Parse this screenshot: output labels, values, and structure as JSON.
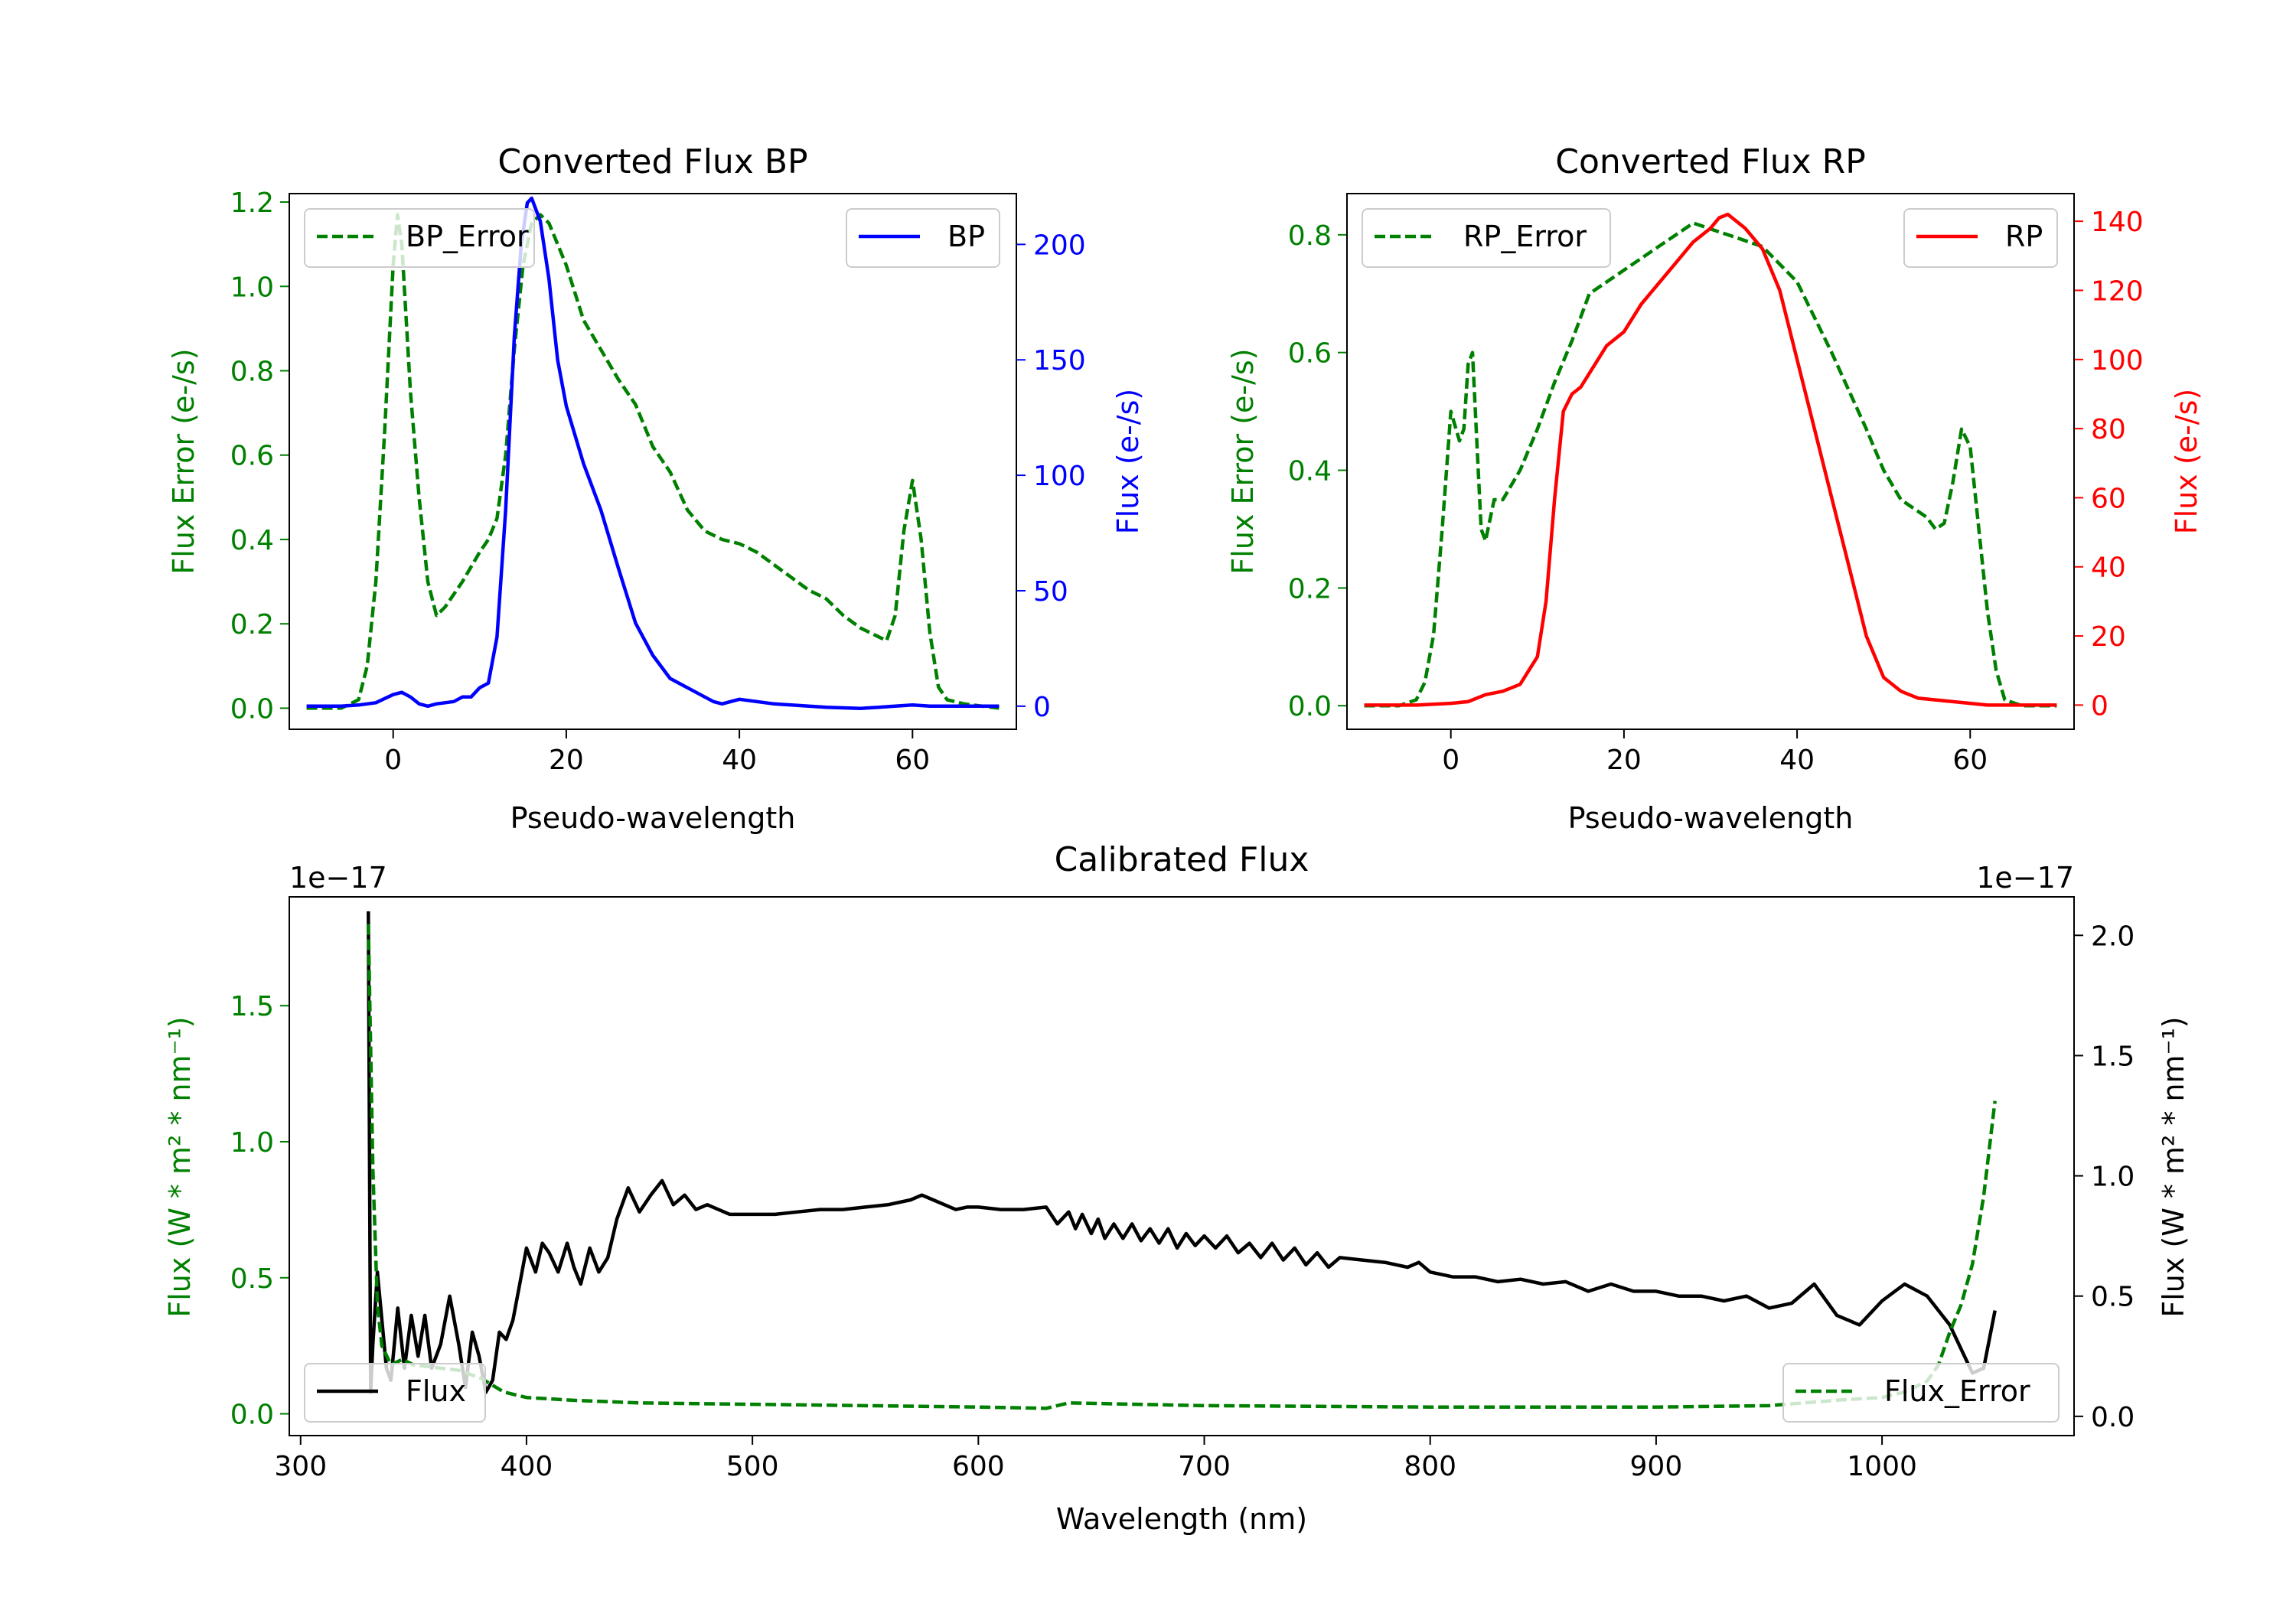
{
  "chart_data": [
    {
      "id": "bp",
      "type": "line",
      "title": "Converted Flux BP",
      "xlabel": "Pseudo-wavelength",
      "xlim": [
        -12,
        72
      ],
      "xticks": [
        0,
        20,
        40,
        60
      ],
      "ylabel_left": "Flux Error (e-/s)",
      "ylim_left": [
        -0.05,
        1.22
      ],
      "yticks_left": [
        0.0,
        0.2,
        0.4,
        0.6,
        0.8,
        1.0,
        1.2
      ],
      "ylabel_right": "Flux (e-/s)",
      "ylim_right": [
        -10,
        222
      ],
      "yticks_right": [
        0,
        50,
        100,
        150,
        200
      ],
      "left_color": "#008000",
      "right_color": "#0000ff",
      "legend_left": "BP_Error",
      "legend_right": "BP",
      "series": [
        {
          "name": "BP_Error",
          "axis": "left",
          "style": "dashed",
          "color": "#008000",
          "x": [
            -10,
            -6,
            -4,
            -3,
            -2,
            -1,
            0,
            0.5,
            1,
            2,
            3,
            4,
            5,
            6,
            8,
            10,
            11,
            12,
            13,
            14,
            15,
            16,
            17,
            18,
            20,
            22,
            24,
            26,
            28,
            30,
            32,
            34,
            36,
            38,
            40,
            42,
            44,
            46,
            48,
            50,
            52,
            54,
            56,
            57,
            58,
            59,
            60,
            61,
            62,
            63,
            64,
            66,
            70
          ],
          "values": [
            0.0,
            0.0,
            0.02,
            0.1,
            0.3,
            0.65,
            1.05,
            1.17,
            1.1,
            0.75,
            0.5,
            0.3,
            0.22,
            0.24,
            0.3,
            0.37,
            0.4,
            0.45,
            0.6,
            0.85,
            1.05,
            1.15,
            1.17,
            1.15,
            1.05,
            0.92,
            0.85,
            0.78,
            0.72,
            0.62,
            0.56,
            0.47,
            0.42,
            0.4,
            0.39,
            0.37,
            0.34,
            0.31,
            0.28,
            0.26,
            0.22,
            0.19,
            0.17,
            0.16,
            0.22,
            0.42,
            0.54,
            0.4,
            0.18,
            0.05,
            0.02,
            0.01,
            0.0
          ]
        },
        {
          "name": "BP",
          "axis": "right",
          "style": "solid",
          "color": "#0000ff",
          "x": [
            -10,
            -6,
            -4,
            -2,
            0,
            1,
            2,
            3,
            4,
            5,
            6,
            7,
            8,
            9,
            10,
            11,
            12,
            13,
            14,
            14.8,
            15.5,
            16,
            17,
            18,
            19,
            20,
            22,
            24,
            26,
            28,
            30,
            32,
            34,
            36,
            37,
            38,
            40,
            42,
            44,
            46,
            50,
            54,
            58,
            60,
            62,
            66,
            70
          ],
          "values": [
            0,
            0,
            0.5,
            1.5,
            5,
            6,
            4,
            1,
            0,
            1,
            1.5,
            2,
            4,
            4,
            8,
            10,
            30,
            85,
            160,
            200,
            218,
            220,
            210,
            185,
            150,
            130,
            105,
            85,
            60,
            36,
            22,
            12,
            8,
            4,
            2,
            1,
            3,
            2,
            1,
            0.5,
            -0.5,
            -1,
            0,
            0.5,
            0,
            0,
            0
          ]
        }
      ]
    },
    {
      "id": "rp",
      "type": "line",
      "title": "Converted Flux RP",
      "xlabel": "Pseudo-wavelength",
      "xlim": [
        -12,
        72
      ],
      "xticks": [
        0,
        20,
        40,
        60
      ],
      "ylabel_left": "Flux Error (e-/s)",
      "ylim_left": [
        -0.04,
        0.87
      ],
      "yticks_left": [
        0.0,
        0.2,
        0.4,
        0.6,
        0.8
      ],
      "ylabel_right": "Flux (e-/s)",
      "ylim_right": [
        -7,
        148
      ],
      "yticks_right": [
        0,
        20,
        40,
        60,
        80,
        100,
        120,
        140
      ],
      "left_color": "#008000",
      "right_color": "#ff0000",
      "legend_left": "RP_Error",
      "legend_right": "RP",
      "series": [
        {
          "name": "RP_Error",
          "axis": "left",
          "style": "dashed",
          "color": "#008000",
          "x": [
            -10,
            -6,
            -4,
            -3,
            -2,
            -1,
            0,
            1,
            1.5,
            2,
            2.5,
            3,
            3.5,
            4,
            5,
            6,
            8,
            10,
            12,
            14,
            16,
            20,
            24,
            28,
            32,
            36,
            40,
            44,
            48,
            50,
            52,
            54,
            55,
            56,
            57,
            58,
            59,
            60,
            61,
            62,
            63,
            64,
            66,
            70
          ],
          "values": [
            0.0,
            0.0,
            0.01,
            0.04,
            0.12,
            0.3,
            0.5,
            0.45,
            0.47,
            0.58,
            0.6,
            0.45,
            0.3,
            0.28,
            0.35,
            0.35,
            0.4,
            0.47,
            0.55,
            0.62,
            0.7,
            0.74,
            0.78,
            0.82,
            0.8,
            0.78,
            0.72,
            0.6,
            0.47,
            0.4,
            0.35,
            0.33,
            0.32,
            0.3,
            0.31,
            0.38,
            0.47,
            0.44,
            0.3,
            0.16,
            0.06,
            0.01,
            0.0,
            0.0
          ]
        },
        {
          "name": "RP",
          "axis": "right",
          "style": "solid",
          "color": "#ff0000",
          "x": [
            -10,
            -4,
            0,
            2,
            4,
            6,
            8,
            10,
            11,
            12,
            13,
            14,
            15,
            16,
            18,
            20,
            22,
            24,
            26,
            28,
            30,
            31,
            32,
            33,
            34,
            36,
            38,
            40,
            42,
            44,
            46,
            48,
            50,
            52,
            54,
            56,
            58,
            60,
            62,
            64,
            66,
            70
          ],
          "values": [
            0,
            0,
            0.5,
            1,
            3,
            4,
            6,
            14,
            30,
            60,
            85,
            90,
            92,
            96,
            104,
            108,
            116,
            122,
            128,
            134,
            138,
            141,
            142,
            140,
            138,
            132,
            120,
            100,
            80,
            60,
            40,
            20,
            8,
            4,
            2,
            1.5,
            1,
            0.5,
            0,
            0,
            0,
            0
          ]
        }
      ]
    },
    {
      "id": "cal",
      "type": "line",
      "title": "Calibrated Flux",
      "xlabel": "Wavelength (nm)",
      "xlim": [
        295,
        1085
      ],
      "xticks": [
        300,
        400,
        500,
        600,
        700,
        800,
        900,
        1000
      ],
      "ylabel_left": "Flux (W * m² * nm⁻¹)",
      "ylim_left": [
        -0.08,
        1.9
      ],
      "yticks_left": [
        0.0,
        0.5,
        1.0,
        1.5
      ],
      "offset_left": "1e−17",
      "ylabel_right": "Flux (W * m² * nm⁻¹)",
      "ylim_right": [
        -0.08,
        2.16
      ],
      "yticks_right": [
        0.0,
        0.5,
        1.0,
        1.5,
        2.0
      ],
      "offset_right": "1e−17",
      "left_color": "#008000",
      "right_color": "#000000",
      "legend_left": "Flux",
      "legend_right": "Flux_Error",
      "series": [
        {
          "name": "Flux",
          "axis": "right",
          "style": "solid",
          "color": "#000000",
          "x": [
            330,
            331,
            332,
            334,
            336,
            338,
            340,
            343,
            346,
            349,
            352,
            355,
            358,
            362,
            366,
            370,
            373,
            376,
            379,
            382,
            385,
            388,
            391,
            394,
            397,
            400,
            404,
            407,
            410,
            414,
            418,
            421,
            424,
            428,
            432,
            436,
            440,
            445,
            450,
            455,
            460,
            465,
            470,
            475,
            480,
            490,
            500,
            510,
            520,
            530,
            540,
            550,
            560,
            570,
            575,
            580,
            585,
            590,
            595,
            600,
            610,
            620,
            630,
            635,
            640,
            643,
            646,
            650,
            653,
            656,
            660,
            664,
            668,
            672,
            676,
            680,
            684,
            688,
            692,
            696,
            700,
            705,
            710,
            715,
            720,
            725,
            730,
            735,
            740,
            745,
            750,
            755,
            760,
            770,
            780,
            790,
            795,
            800,
            810,
            820,
            830,
            840,
            850,
            860,
            870,
            880,
            890,
            900,
            910,
            920,
            930,
            940,
            950,
            960,
            970,
            980,
            990,
            1000,
            1010,
            1020,
            1030,
            1040,
            1045,
            1050
          ],
          "values": [
            2.1,
            0.1,
            0.3,
            0.6,
            0.4,
            0.2,
            0.15,
            0.45,
            0.2,
            0.42,
            0.25,
            0.42,
            0.2,
            0.3,
            0.5,
            0.3,
            0.12,
            0.35,
            0.25,
            0.1,
            0.15,
            0.35,
            0.32,
            0.4,
            0.55,
            0.7,
            0.6,
            0.72,
            0.68,
            0.6,
            0.72,
            0.62,
            0.55,
            0.7,
            0.6,
            0.66,
            0.82,
            0.95,
            0.85,
            0.92,
            0.98,
            0.88,
            0.92,
            0.86,
            0.88,
            0.84,
            0.84,
            0.84,
            0.85,
            0.86,
            0.86,
            0.87,
            0.88,
            0.9,
            0.92,
            0.9,
            0.88,
            0.86,
            0.87,
            0.87,
            0.86,
            0.86,
            0.87,
            0.8,
            0.85,
            0.78,
            0.84,
            0.76,
            0.82,
            0.74,
            0.8,
            0.74,
            0.8,
            0.73,
            0.78,
            0.72,
            0.78,
            0.7,
            0.76,
            0.71,
            0.75,
            0.7,
            0.75,
            0.68,
            0.72,
            0.66,
            0.72,
            0.65,
            0.7,
            0.63,
            0.68,
            0.62,
            0.66,
            0.65,
            0.64,
            0.62,
            0.64,
            0.6,
            0.58,
            0.58,
            0.56,
            0.57,
            0.55,
            0.56,
            0.52,
            0.55,
            0.52,
            0.52,
            0.5,
            0.5,
            0.48,
            0.5,
            0.45,
            0.47,
            0.55,
            0.42,
            0.38,
            0.48,
            0.55,
            0.5,
            0.38,
            0.18,
            0.2,
            0.44
          ]
        },
        {
          "name": "Flux_Error",
          "axis": "left",
          "style": "dashed",
          "color": "#008000",
          "x": [
            330,
            332,
            334,
            336,
            340,
            345,
            350,
            360,
            370,
            380,
            390,
            400,
            420,
            450,
            500,
            600,
            630,
            640,
            700,
            800,
            900,
            950,
            980,
            1000,
            1010,
            1020,
            1025,
            1030,
            1035,
            1040,
            1045,
            1050
          ],
          "values": [
            1.8,
            0.9,
            0.4,
            0.25,
            0.18,
            0.2,
            0.18,
            0.17,
            0.16,
            0.13,
            0.08,
            0.06,
            0.05,
            0.04,
            0.035,
            0.025,
            0.02,
            0.04,
            0.03,
            0.025,
            0.025,
            0.03,
            0.05,
            0.06,
            0.08,
            0.12,
            0.18,
            0.3,
            0.4,
            0.55,
            0.8,
            1.15
          ]
        }
      ]
    }
  ]
}
